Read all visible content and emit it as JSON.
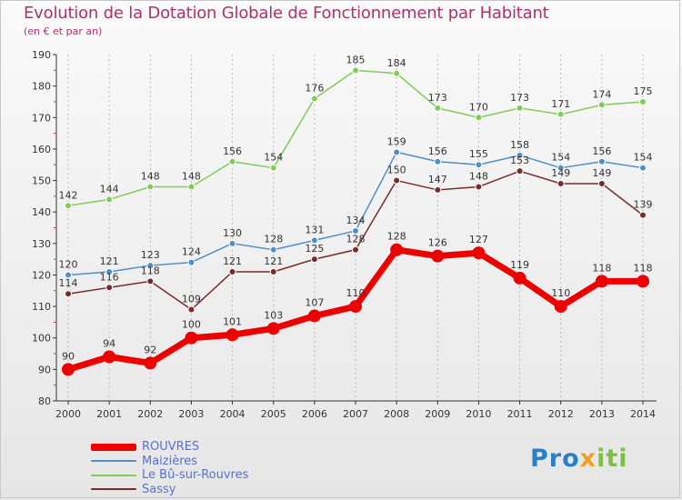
{
  "title": "Evolution de la Dotation Globale de Fonctionnement par Habitant",
  "subtitle": "(en € et par an)",
  "logo": {
    "text": "Proxiti",
    "parts": [
      "Pro",
      "x",
      "iti"
    ]
  },
  "colors": {
    "title": "#b0306a",
    "legend_text": "#5570d8",
    "axis": "#333333",
    "grid": "#bbbbbb"
  },
  "chart_data": {
    "type": "line",
    "title": "Evolution de la Dotation Globale de Fonctionnement par Habitant",
    "subtitle": "(en € et par an)",
    "xlabel": "",
    "ylabel": "",
    "x": [
      "2000",
      "2001",
      "2002",
      "2003",
      "2004",
      "2005",
      "2006",
      "2007",
      "2008",
      "2009",
      "2010",
      "2011",
      "2012",
      "2013",
      "2014"
    ],
    "ylim": [
      80,
      190
    ],
    "yticks": [
      80,
      90,
      100,
      110,
      120,
      130,
      140,
      150,
      160,
      170,
      180,
      190
    ],
    "grid": "vertical dashed",
    "legend_position": "bottom-left",
    "series": [
      {
        "name": "ROUVRES",
        "color": "#ee0000",
        "values": [
          90,
          94,
          92,
          100,
          101,
          103,
          107,
          110,
          128,
          126,
          127,
          119,
          110,
          118,
          118
        ]
      },
      {
        "name": "Maizières",
        "color": "#4f90c8",
        "values": [
          120,
          121,
          123,
          124,
          130,
          128,
          131,
          134,
          159,
          156,
          155,
          158,
          154,
          156,
          154
        ]
      },
      {
        "name": "Le Bû-sur-Rouvres",
        "color": "#80cc55",
        "values": [
          142,
          144,
          148,
          148,
          156,
          154,
          176,
          185,
          184,
          173,
          170,
          173,
          171,
          174,
          175
        ]
      },
      {
        "name": "Sassy",
        "color": "#7a2a2a",
        "values": [
          114,
          116,
          118,
          109,
          121,
          121,
          125,
          128,
          150,
          147,
          148,
          153,
          149,
          149,
          139
        ]
      }
    ]
  }
}
